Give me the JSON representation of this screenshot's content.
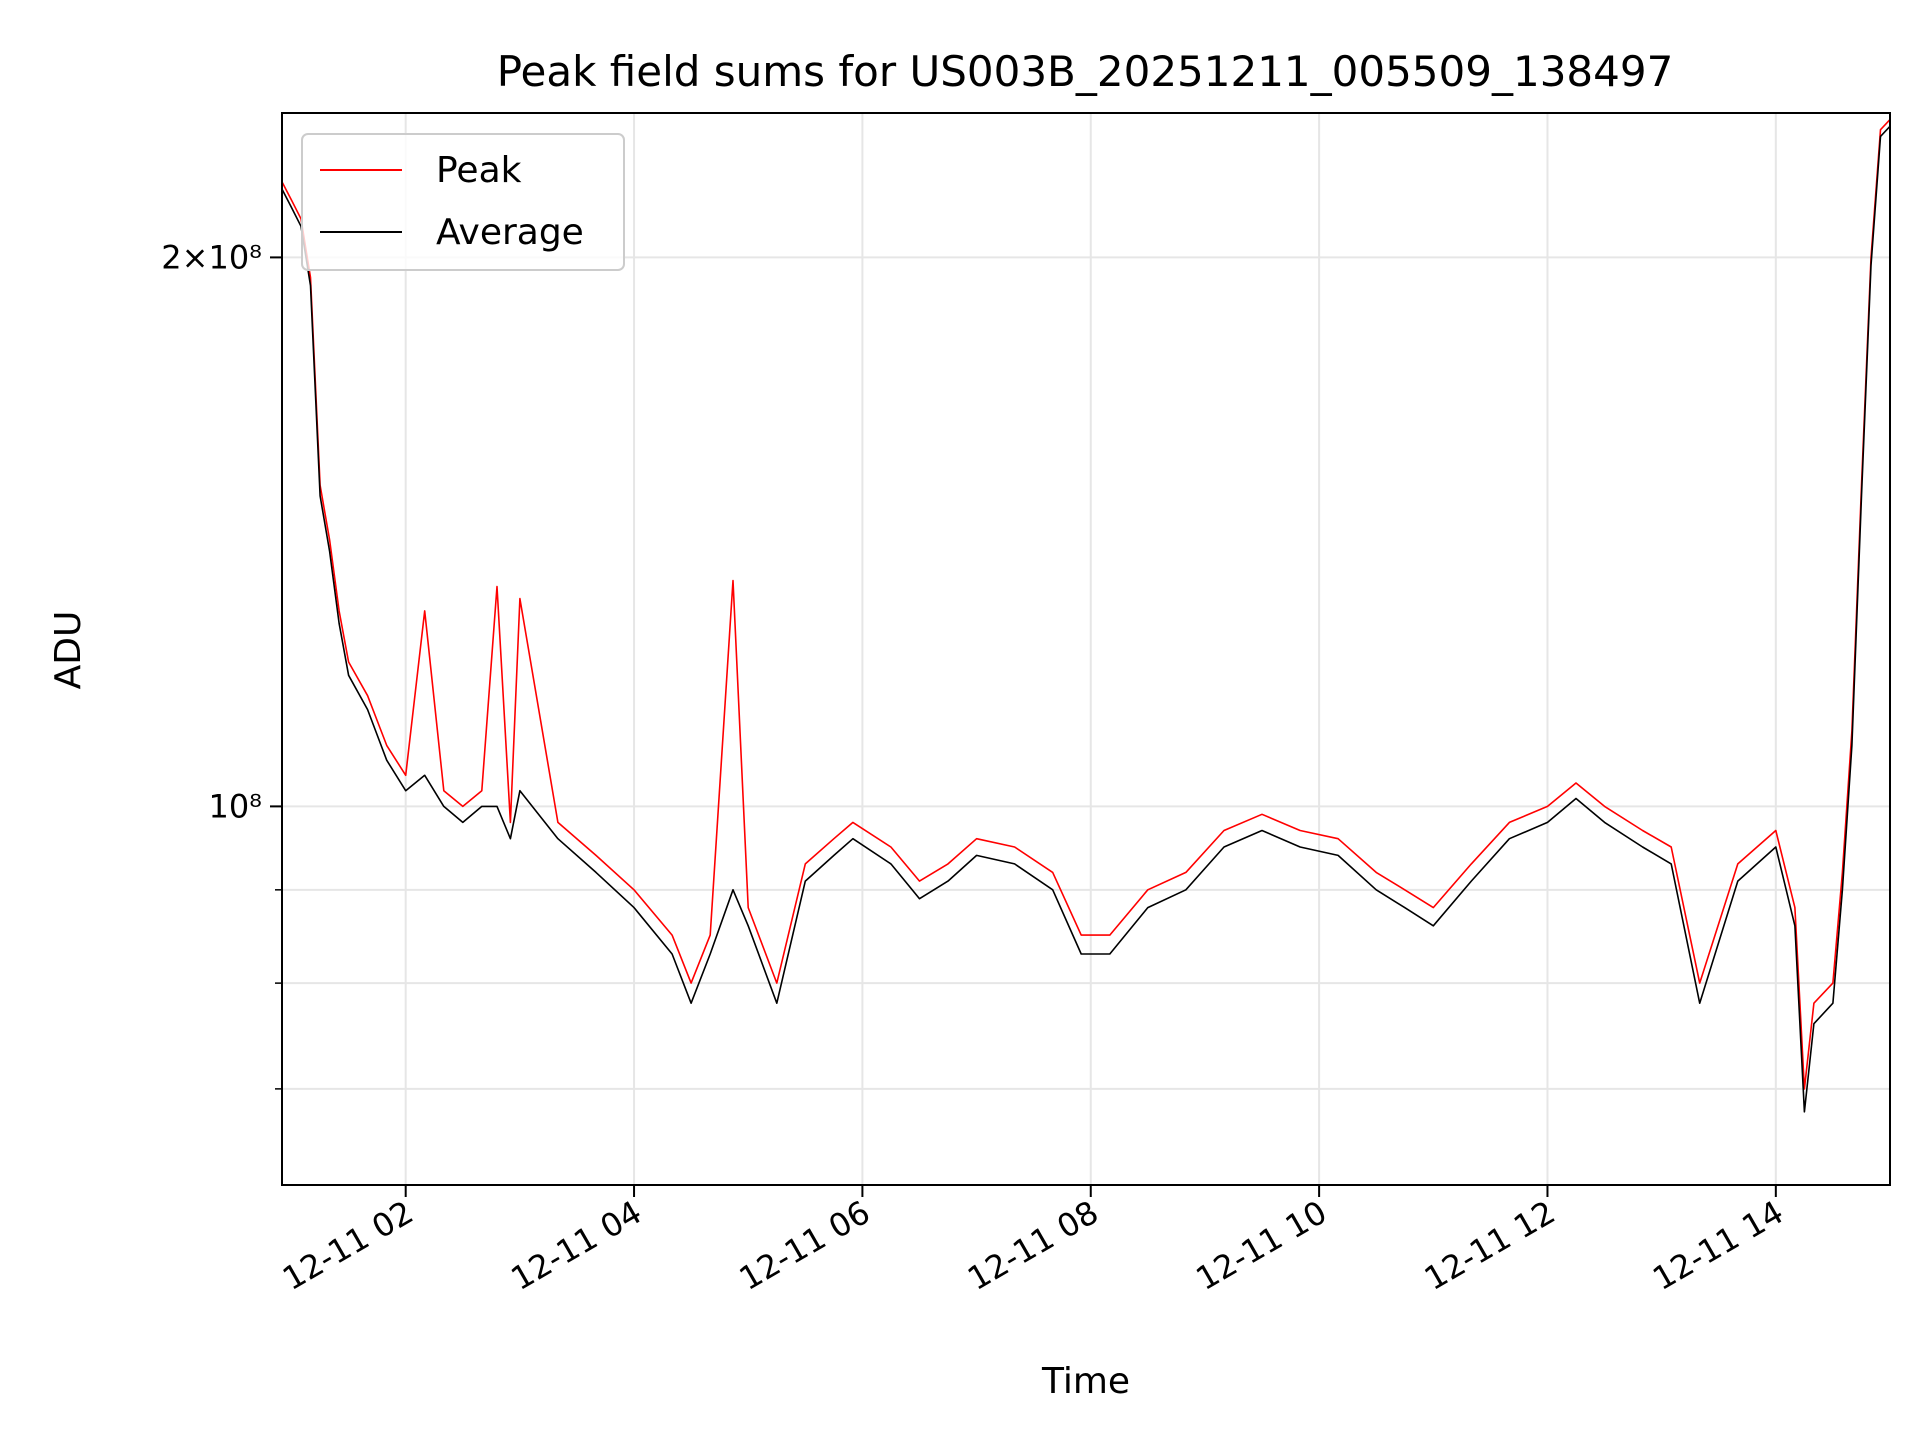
{
  "chart_data": {
    "type": "line",
    "title": "Peak field sums for US003B_20251211_005509_138497",
    "xlabel": "Time",
    "ylabel": "ADU",
    "yscale": "log",
    "grid": true,
    "legend_placement": "upper-left",
    "xlim": [
      "2025-12-11 00:55",
      "2025-12-11 15:00"
    ],
    "ylim": [
      62000000,
      240000000
    ],
    "x_ticks": [
      {
        "value": "2025-12-11 02:00",
        "label": "12-11 02"
      },
      {
        "value": "2025-12-11 04:00",
        "label": "12-11 04"
      },
      {
        "value": "2025-12-11 06:00",
        "label": "12-11 06"
      },
      {
        "value": "2025-12-11 08:00",
        "label": "12-11 08"
      },
      {
        "value": "2025-12-11 10:00",
        "label": "12-11 10"
      },
      {
        "value": "2025-12-11 12:00",
        "label": "12-11 12"
      },
      {
        "value": "2025-12-11 14:00",
        "label": "12-11 14"
      }
    ],
    "y_ticks": [
      {
        "value": 100000000,
        "label": "10⁸"
      },
      {
        "value": 200000000,
        "label": "2×10⁸"
      }
    ],
    "y_minor_ticks": [
      70000000,
      80000000,
      90000000
    ],
    "series": [
      {
        "name": "Peak",
        "color": "#ff0000",
        "x": [
          "2025-12-11 00:55",
          "2025-12-11 01:00",
          "2025-12-11 01:05",
          "2025-12-11 01:10",
          "2025-12-11 01:15",
          "2025-12-11 01:20",
          "2025-12-11 01:25",
          "2025-12-11 01:30",
          "2025-12-11 01:40",
          "2025-12-11 01:50",
          "2025-12-11 02:00",
          "2025-12-11 02:10",
          "2025-12-11 02:20",
          "2025-12-11 02:30",
          "2025-12-11 02:40",
          "2025-12-11 02:48",
          "2025-12-11 02:55",
          "2025-12-11 03:00",
          "2025-12-11 03:20",
          "2025-12-11 03:40",
          "2025-12-11 04:00",
          "2025-12-11 04:20",
          "2025-12-11 04:30",
          "2025-12-11 04:40",
          "2025-12-11 04:52",
          "2025-12-11 05:00",
          "2025-12-11 05:15",
          "2025-12-11 05:30",
          "2025-12-11 05:45",
          "2025-12-11 05:55",
          "2025-12-11 06:15",
          "2025-12-11 06:30",
          "2025-12-11 06:45",
          "2025-12-11 07:00",
          "2025-12-11 07:20",
          "2025-12-11 07:40",
          "2025-12-11 07:55",
          "2025-12-11 08:10",
          "2025-12-11 08:30",
          "2025-12-11 08:50",
          "2025-12-11 09:10",
          "2025-12-11 09:30",
          "2025-12-11 09:50",
          "2025-12-11 10:10",
          "2025-12-11 10:30",
          "2025-12-11 10:45",
          "2025-12-11 11:00",
          "2025-12-11 11:20",
          "2025-12-11 11:40",
          "2025-12-11 12:00",
          "2025-12-11 12:15",
          "2025-12-11 12:30",
          "2025-12-11 12:50",
          "2025-12-11 13:05",
          "2025-12-11 13:20",
          "2025-12-11 13:40",
          "2025-12-11 14:00",
          "2025-12-11 14:10",
          "2025-12-11 14:15",
          "2025-12-11 14:20",
          "2025-12-11 14:30",
          "2025-12-11 14:35",
          "2025-12-11 14:40",
          "2025-12-11 14:45",
          "2025-12-11 14:50",
          "2025-12-11 14:55",
          "2025-12-11 15:00"
        ],
        "y": [
          220000000,
          215000000,
          210000000,
          195000000,
          150000000,
          140000000,
          128000000,
          120000000,
          115000000,
          108000000,
          104000000,
          128000000,
          102000000,
          100000000,
          102000000,
          132000000,
          98000000,
          130000000,
          98000000,
          94000000,
          90000000,
          85000000,
          80000000,
          85000000,
          133000000,
          88000000,
          80000000,
          93000000,
          96000000,
          98000000,
          95000000,
          91000000,
          93000000,
          96000000,
          95000000,
          92000000,
          85000000,
          85000000,
          90000000,
          92000000,
          97000000,
          99000000,
          97000000,
          96000000,
          92000000,
          90000000,
          88000000,
          93000000,
          98000000,
          100000000,
          103000000,
          100000000,
          97000000,
          95000000,
          80000000,
          93000000,
          97000000,
          88000000,
          70000000,
          78000000,
          80000000,
          92000000,
          110000000,
          150000000,
          200000000,
          235000000,
          238000000
        ]
      },
      {
        "name": "Average",
        "color": "#000000",
        "x": [
          "2025-12-11 00:55",
          "2025-12-11 01:00",
          "2025-12-11 01:05",
          "2025-12-11 01:10",
          "2025-12-11 01:15",
          "2025-12-11 01:20",
          "2025-12-11 01:25",
          "2025-12-11 01:30",
          "2025-12-11 01:40",
          "2025-12-11 01:50",
          "2025-12-11 02:00",
          "2025-12-11 02:10",
          "2025-12-11 02:20",
          "2025-12-11 02:30",
          "2025-12-11 02:40",
          "2025-12-11 02:48",
          "2025-12-11 02:55",
          "2025-12-11 03:00",
          "2025-12-11 03:20",
          "2025-12-11 03:40",
          "2025-12-11 04:00",
          "2025-12-11 04:20",
          "2025-12-11 04:30",
          "2025-12-11 04:40",
          "2025-12-11 04:52",
          "2025-12-11 05:00",
          "2025-12-11 05:15",
          "2025-12-11 05:30",
          "2025-12-11 05:45",
          "2025-12-11 05:55",
          "2025-12-11 06:15",
          "2025-12-11 06:30",
          "2025-12-11 06:45",
          "2025-12-11 07:00",
          "2025-12-11 07:20",
          "2025-12-11 07:40",
          "2025-12-11 07:55",
          "2025-12-11 08:10",
          "2025-12-11 08:30",
          "2025-12-11 08:50",
          "2025-12-11 09:10",
          "2025-12-11 09:30",
          "2025-12-11 09:50",
          "2025-12-11 10:10",
          "2025-12-11 10:30",
          "2025-12-11 10:45",
          "2025-12-11 11:00",
          "2025-12-11 11:20",
          "2025-12-11 11:40",
          "2025-12-11 12:00",
          "2025-12-11 12:15",
          "2025-12-11 12:30",
          "2025-12-11 12:50",
          "2025-12-11 13:05",
          "2025-12-11 13:20",
          "2025-12-11 13:40",
          "2025-12-11 14:00",
          "2025-12-11 14:10",
          "2025-12-11 14:15",
          "2025-12-11 14:20",
          "2025-12-11 14:30",
          "2025-12-11 14:35",
          "2025-12-11 14:40",
          "2025-12-11 14:45",
          "2025-12-11 14:50",
          "2025-12-11 14:55",
          "2025-12-11 15:00"
        ],
        "y": [
          218000000,
          213000000,
          208000000,
          193000000,
          148000000,
          138000000,
          126000000,
          118000000,
          113000000,
          106000000,
          102000000,
          104000000,
          100000000,
          98000000,
          100000000,
          100000000,
          96000000,
          102000000,
          96000000,
          92000000,
          88000000,
          83000000,
          78000000,
          83000000,
          90000000,
          86000000,
          78000000,
          91000000,
          94000000,
          96000000,
          93000000,
          89000000,
          91000000,
          94000000,
          93000000,
          90000000,
          83000000,
          83000000,
          88000000,
          90000000,
          95000000,
          97000000,
          95000000,
          94000000,
          90000000,
          88000000,
          86000000,
          91000000,
          96000000,
          98000000,
          101000000,
          98000000,
          95000000,
          93000000,
          78000000,
          91000000,
          95000000,
          86000000,
          68000000,
          76000000,
          78000000,
          90000000,
          108000000,
          148000000,
          198000000,
          233000000,
          236000000
        ]
      }
    ]
  }
}
